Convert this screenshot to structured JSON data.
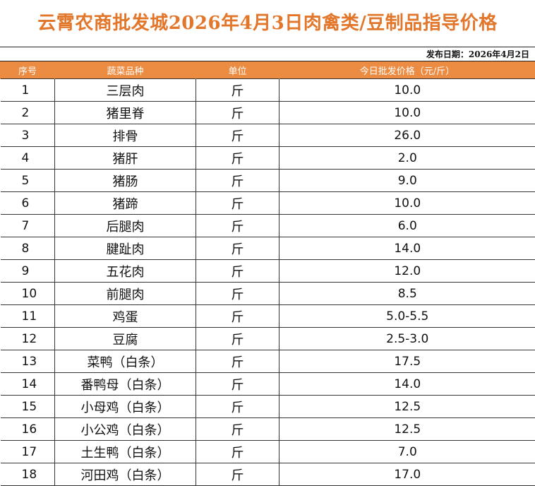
{
  "header": {
    "title": "云霄农商批发城2026年4月3日肉禽类/豆制品指导价格",
    "publish_date": "发布日期：2026年4月2日"
  },
  "table": {
    "columns": [
      "序号",
      "蔬菜品种",
      "单位",
      "今日批发价格（元/斤）"
    ],
    "rows": [
      {
        "no": "1",
        "name": "三层肉",
        "unit": "斤",
        "price": "10.0"
      },
      {
        "no": "2",
        "name": "猪里脊",
        "unit": "斤",
        "price": "10.0"
      },
      {
        "no": "3",
        "name": "排骨",
        "unit": "斤",
        "price": "26.0"
      },
      {
        "no": "4",
        "name": "猪肝",
        "unit": "斤",
        "price": "2.0"
      },
      {
        "no": "5",
        "name": "猪肠",
        "unit": "斤",
        "price": "9.0"
      },
      {
        "no": "6",
        "name": "猪蹄",
        "unit": "斤",
        "price": "10.0"
      },
      {
        "no": "7",
        "name": "后腿肉",
        "unit": "斤",
        "price": "6.0"
      },
      {
        "no": "8",
        "name": "腱趾肉",
        "unit": "斤",
        "price": "14.0"
      },
      {
        "no": "9",
        "name": "五花肉",
        "unit": "斤",
        "price": "12.0"
      },
      {
        "no": "10",
        "name": "前腿肉",
        "unit": "斤",
        "price": "8.5"
      },
      {
        "no": "11",
        "name": "鸡蛋",
        "unit": "斤",
        "price": "5.0-5.5"
      },
      {
        "no": "12",
        "name": "豆腐",
        "unit": "斤",
        "price": "2.5-3.0"
      },
      {
        "no": "13",
        "name": "菜鸭（白条）",
        "unit": "斤",
        "price": "17.5"
      },
      {
        "no": "14",
        "name": "番鸭母（白条）",
        "unit": "斤",
        "price": "14.0"
      },
      {
        "no": "15",
        "name": "小母鸡（白条）",
        "unit": "斤",
        "price": "12.5"
      },
      {
        "no": "16",
        "name": "小公鸡（白条）",
        "unit": "斤",
        "price": "12.5"
      },
      {
        "no": "17",
        "name": "土生鸭（白条）",
        "unit": "斤",
        "price": "7.0"
      },
      {
        "no": "18",
        "name": "河田鸡（白条）",
        "unit": "斤",
        "price": "17.0"
      }
    ]
  },
  "colors": {
    "title": "#e2762b",
    "header_bg": "#ec8c42",
    "header_text": "#ffffff"
  }
}
